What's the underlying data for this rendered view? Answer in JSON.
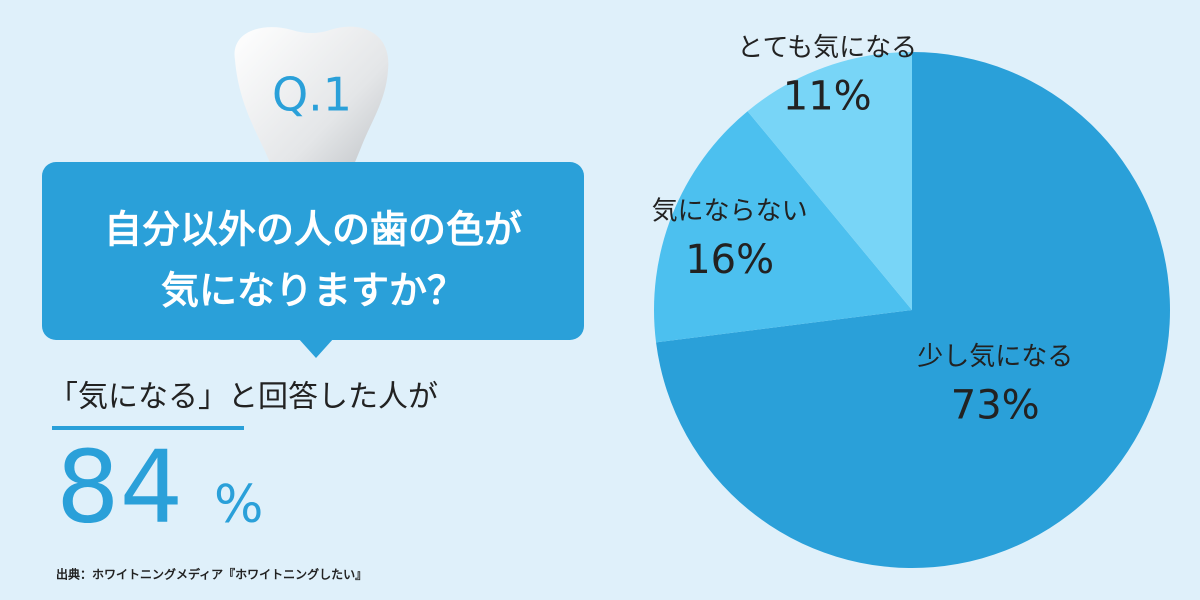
{
  "infographic": {
    "badge": "Q.1",
    "question": [
      "自分以外の人の歯の色が",
      "気になりますか？"
    ],
    "callout": "「気になる」と回答した人が",
    "highlight_number": "84",
    "highlight_unit": "%",
    "source": "出典：ホワイトニングメディア『ホワイトニングしたい』"
  },
  "chart_data": {
    "type": "pie",
    "categories": [
      "少し気になる",
      "気にならない",
      "とても気になる"
    ],
    "values": [
      73,
      16,
      11
    ],
    "value_labels": [
      "73%",
      "16%",
      "11%"
    ],
    "colors": [
      "#2aa0d9",
      "#4cc0ef",
      "#78d5f7"
    ]
  }
}
